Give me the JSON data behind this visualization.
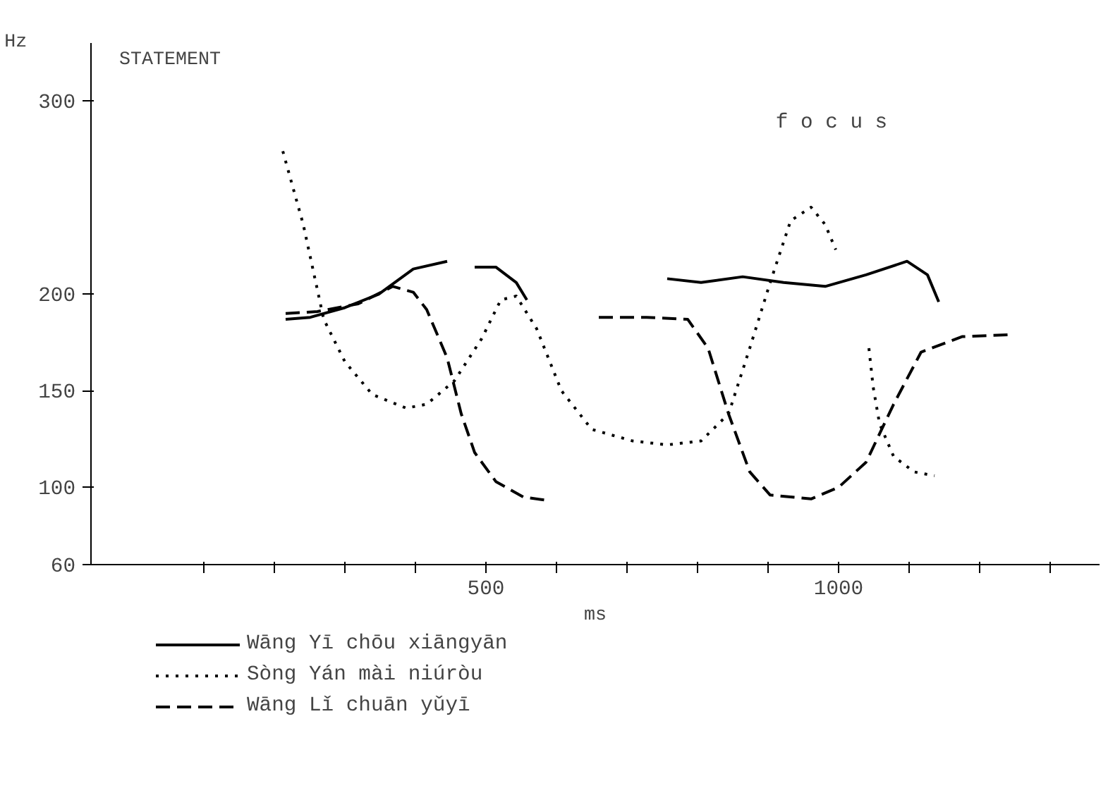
{
  "chart_data": {
    "type": "line",
    "title": "STATEMENT",
    "xlabel": "ms",
    "ylabel": "Hz",
    "xlim": [
      -60,
      1370
    ],
    "ylim": [
      60,
      330
    ],
    "xticks": [
      {
        "value": 100,
        "label": null
      },
      {
        "value": 200,
        "label": null
      },
      {
        "value": 300,
        "label": null
      },
      {
        "value": 400,
        "label": null
      },
      500,
      {
        "value": 600,
        "label": null
      },
      {
        "value": 700,
        "label": null
      },
      {
        "value": 800,
        "label": null
      },
      {
        "value": 900,
        "label": null
      },
      1000,
      {
        "value": 1100,
        "label": null
      },
      {
        "value": 1200,
        "label": null
      },
      {
        "value": 1300,
        "label": null
      }
    ],
    "yticks": [
      60,
      100,
      150,
      200,
      300
    ],
    "grid": false,
    "legend": "bottom",
    "marker": "none",
    "annotations": [
      "f o c u s"
    ],
    "series": [
      {
        "name": "Wāng Yī chōu xiāngyān",
        "color": "#000000",
        "line_style": "solid",
        "x": [
          216,
          251,
          300,
          348,
          397,
          445,
          null,
          484,
          514,
          543,
          558,
          null,
          757,
          805,
          864,
          922,
          981,
          1039,
          1097,
          1126,
          1142
        ],
        "values": [
          187,
          188,
          193,
          200,
          213,
          217,
          null,
          214,
          214,
          206,
          197,
          null,
          208,
          206,
          209,
          206,
          204,
          210,
          217,
          210,
          196
        ]
      },
      {
        "name": "Sòng Yán mài niúròu",
        "color": "#000000",
        "line_style": "dotted",
        "x": [
          212,
          241,
          270,
          300,
          339,
          387,
          416,
          455,
          494,
          521,
          543,
          572,
          607,
          650,
          708,
          757,
          805,
          844,
          874,
          903,
          932,
          961,
          981,
          996,
          null,
          1043,
          1049,
          1058,
          1078,
          1107,
          1136
        ],
        "values": [
          274,
          236,
          187,
          165,
          148,
          141,
          143,
          155,
          177,
          197,
          199,
          182,
          150,
          130,
          124,
          122,
          124,
          138,
          172,
          206,
          238,
          245,
          236,
          223,
          null,
          172,
          152,
          133,
          116,
          108,
          106
        ]
      },
      {
        "name": "Wāng Lǐ chuān yǔyī",
        "color": "#000000",
        "line_style": "dashed",
        "x": [
          216,
          261,
          319,
          368,
          397,
          416,
          445,
          465,
          484,
          514,
          553,
          591,
          null,
          660,
          728,
          786,
          815,
          844,
          874,
          903,
          961,
          1000,
          1039,
          1078,
          1117,
          1175,
          1243
        ],
        "values": [
          190,
          191,
          195,
          204,
          201,
          192,
          167,
          138,
          118,
          103,
          95,
          93,
          null,
          188,
          188,
          187,
          172,
          138,
          108,
          96,
          94,
          100,
          113,
          143,
          170,
          178,
          179
        ]
      }
    ]
  }
}
